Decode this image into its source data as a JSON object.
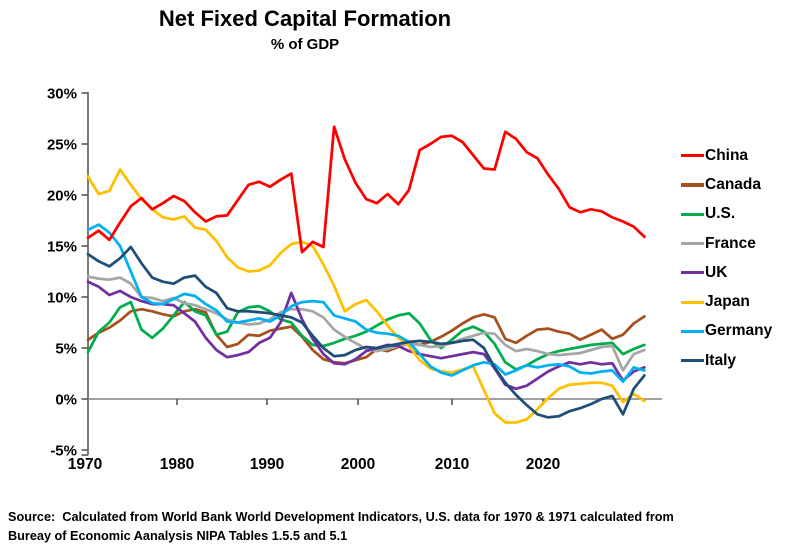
{
  "header": {
    "title": "Net Fixed Capital Formation",
    "subtitle": "% of GDP"
  },
  "source": {
    "line1": "Source:  Calculated from World Bank World Development Indicators, U.S. data for 1970 & 1971 calculated from",
    "line2": "Bureay of Economic Aanalysis NIPA Tables 1.5.5 and 5.1"
  },
  "chart_data": {
    "type": "line",
    "title": "Net Fixed Capital Formation",
    "subtitle": "% of GDP",
    "xlabel": "",
    "ylabel": "% of GDP",
    "ylim": [
      -5,
      30
    ],
    "grid": "zero-line-only",
    "legend_position": "right",
    "y_tick_values": [
      30,
      25,
      20,
      15,
      10,
      5,
      0,
      -5
    ],
    "y_tick_labels": [
      "30%",
      "25%",
      "20%",
      "15%",
      "10%",
      "5%",
      "0%",
      "-5%"
    ],
    "x_tick_labels": [
      "1970",
      "1980",
      "1990",
      "2000",
      "2010",
      "2020"
    ],
    "years": [
      1970,
      1971,
      1972,
      1973,
      1974,
      1975,
      1976,
      1977,
      1978,
      1979,
      1980,
      1981,
      1982,
      1983,
      1984,
      1985,
      1986,
      1987,
      1988,
      1989,
      1990,
      1991,
      1992,
      1993,
      1994,
      1995,
      1996,
      1997,
      1998,
      1999,
      2000,
      2001,
      2002,
      2003,
      2004,
      2005,
      2006,
      2007,
      2008,
      2009,
      2010,
      2011,
      2012,
      2013,
      2014,
      2015,
      2016,
      2017,
      2018,
      2019,
      2020,
      2021,
      2022
    ],
    "series": [
      {
        "name": "China",
        "color": "#FF0000",
        "values": [
          15.8,
          16.5,
          15.6,
          17.3,
          18.9,
          19.7,
          18.6,
          19.2,
          19.9,
          19.4,
          18.3,
          17.4,
          17.9,
          18.0,
          19.5,
          21.0,
          21.3,
          20.8,
          21.5,
          22.1,
          14.4,
          15.4,
          14.9,
          26.7,
          23.5,
          21.2,
          19.6,
          19.2,
          20.1,
          19.1,
          20.5,
          24.4,
          25.0,
          25.7,
          25.8,
          25.2,
          23.9,
          22.6,
          22.5,
          26.2,
          25.5,
          24.2,
          23.6,
          22.0,
          20.6,
          18.8,
          18.3,
          18.6,
          18.4,
          17.8,
          17.4,
          16.9,
          15.9
        ]
      },
      {
        "name": "Canada",
        "color": "#A5511D",
        "values": [
          5.8,
          6.5,
          7.0,
          7.7,
          8.6,
          8.8,
          8.6,
          8.3,
          8.1,
          8.6,
          8.8,
          8.5,
          6.3,
          5.1,
          5.4,
          6.3,
          6.2,
          6.7,
          6.9,
          7.1,
          6.1,
          4.8,
          3.9,
          3.6,
          3.5,
          3.8,
          4.1,
          4.9,
          4.7,
          5.1,
          5.5,
          5.3,
          5.6,
          6.1,
          6.7,
          7.4,
          8.0,
          8.3,
          8.0,
          5.9,
          5.5,
          6.2,
          6.8,
          6.9,
          6.6,
          6.4,
          5.8,
          6.3,
          6.8,
          5.9,
          6.3,
          7.4,
          8.1
        ]
      },
      {
        "name": "U.S.",
        "color": "#00AC4E",
        "values": [
          4.6,
          6.6,
          7.5,
          9.0,
          9.5,
          6.8,
          6.0,
          6.9,
          8.2,
          9.5,
          8.6,
          8.2,
          6.3,
          6.6,
          8.5,
          9.0,
          9.1,
          8.6,
          7.8,
          7.5,
          6.2,
          5.3,
          5.2,
          5.5,
          5.9,
          6.2,
          6.6,
          7.2,
          7.8,
          8.2,
          8.4,
          7.4,
          5.8,
          5.0,
          5.8,
          6.7,
          7.1,
          6.6,
          5.4,
          3.6,
          2.9,
          3.3,
          3.9,
          4.4,
          4.7,
          4.9,
          5.1,
          5.3,
          5.4,
          5.5,
          4.4,
          4.9,
          5.3
        ]
      },
      {
        "name": "France",
        "color": "#A6A6A6",
        "values": [
          12.0,
          11.8,
          11.7,
          11.9,
          11.3,
          10.0,
          9.9,
          9.6,
          9.9,
          9.4,
          9.2,
          8.8,
          8.4,
          7.8,
          7.5,
          7.3,
          7.4,
          7.8,
          8.5,
          8.8,
          8.8,
          8.6,
          8.0,
          6.8,
          6.1,
          5.5,
          4.9,
          4.7,
          4.9,
          5.2,
          5.4,
          5.3,
          5.1,
          5.2,
          5.5,
          5.9,
          6.2,
          6.5,
          6.4,
          5.3,
          4.7,
          4.9,
          4.7,
          4.4,
          4.3,
          4.4,
          4.5,
          4.8,
          5.1,
          5.2,
          2.8,
          4.4,
          4.8
        ]
      },
      {
        "name": "UK",
        "color": "#7030A0",
        "values": [
          11.5,
          11.0,
          10.2,
          10.6,
          10.0,
          9.6,
          9.3,
          9.3,
          9.2,
          8.4,
          7.6,
          6.0,
          4.8,
          4.1,
          4.3,
          4.6,
          5.5,
          6.0,
          7.5,
          10.4,
          7.8,
          5.9,
          4.4,
          3.5,
          3.4,
          3.9,
          4.7,
          5.0,
          5.3,
          5.2,
          4.7,
          4.4,
          4.2,
          4.0,
          4.2,
          4.4,
          4.6,
          4.4,
          3.0,
          1.4,
          1.0,
          1.3,
          2.0,
          2.7,
          3.2,
          3.6,
          3.4,
          3.6,
          3.4,
          3.5,
          1.8,
          2.7,
          3.1
        ]
      },
      {
        "name": "Japan",
        "color": "#FFC000",
        "values": [
          21.8,
          20.1,
          20.4,
          22.5,
          21.0,
          19.6,
          18.6,
          17.8,
          17.6,
          17.9,
          16.8,
          16.6,
          15.5,
          13.9,
          12.9,
          12.5,
          12.6,
          13.1,
          14.3,
          15.2,
          15.4,
          15.0,
          13.2,
          11.1,
          8.6,
          9.3,
          9.7,
          8.6,
          7.2,
          6.0,
          5.2,
          3.8,
          3.0,
          2.7,
          2.6,
          2.9,
          3.2,
          0.9,
          -1.4,
          -2.3,
          -2.3,
          -2.0,
          -1.0,
          0.1,
          1.0,
          1.4,
          1.5,
          1.6,
          1.6,
          1.3,
          -0.3,
          0.5,
          -0.2
        ]
      },
      {
        "name": "Germany",
        "color": "#00B0F0",
        "values": [
          16.6,
          17.1,
          16.3,
          15.0,
          12.5,
          10.0,
          9.4,
          9.3,
          9.8,
          10.3,
          10.1,
          9.3,
          8.7,
          7.6,
          7.5,
          7.7,
          7.9,
          7.6,
          8.2,
          9.1,
          9.5,
          9.6,
          9.5,
          8.2,
          7.9,
          7.6,
          6.8,
          6.5,
          6.4,
          6.2,
          5.6,
          4.4,
          3.2,
          2.6,
          2.3,
          2.8,
          3.3,
          3.6,
          3.4,
          2.4,
          2.8,
          3.3,
          3.1,
          3.3,
          3.4,
          3.2,
          2.6,
          2.5,
          2.7,
          2.8,
          1.7,
          3.1,
          2.8
        ]
      },
      {
        "name": "Italy",
        "color": "#1F4E79",
        "values": [
          14.2,
          13.5,
          13.0,
          13.8,
          14.9,
          13.3,
          11.9,
          11.5,
          11.3,
          11.9,
          12.1,
          11.0,
          10.4,
          8.9,
          8.6,
          8.6,
          8.5,
          8.4,
          8.2,
          8.0,
          7.5,
          6.2,
          5.0,
          4.2,
          4.3,
          4.8,
          5.1,
          5.0,
          5.2,
          5.4,
          5.6,
          5.7,
          5.6,
          5.4,
          5.5,
          5.7,
          5.8,
          5.0,
          3.1,
          1.6,
          0.4,
          -0.6,
          -1.5,
          -1.8,
          -1.7,
          -1.2,
          -0.9,
          -0.5,
          0.0,
          0.3,
          -1.5,
          1.0,
          2.3
        ]
      }
    ]
  }
}
